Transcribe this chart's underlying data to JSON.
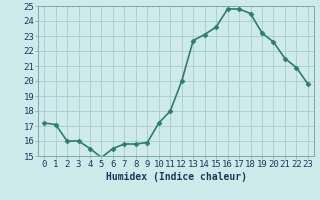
{
  "x": [
    0,
    1,
    2,
    3,
    4,
    5,
    6,
    7,
    8,
    9,
    10,
    11,
    12,
    13,
    14,
    15,
    16,
    17,
    18,
    19,
    20,
    21,
    22,
    23
  ],
  "y": [
    17.2,
    17.1,
    16.0,
    16.0,
    15.5,
    14.9,
    15.5,
    15.8,
    15.8,
    15.9,
    17.2,
    18.0,
    20.0,
    22.7,
    23.1,
    23.6,
    24.8,
    24.8,
    24.5,
    23.2,
    22.6,
    21.5,
    20.9,
    19.8
  ],
  "line_color": "#2e7d6e",
  "marker": "D",
  "marker_size": 2.5,
  "bg_color": "#ceeaea",
  "grid_color": "#a8cccc",
  "xlabel": "Humidex (Indice chaleur)",
  "ylim": [
    15,
    25
  ],
  "xlim_min": -0.5,
  "xlim_max": 23.5,
  "yticks": [
    15,
    16,
    17,
    18,
    19,
    20,
    21,
    22,
    23,
    24,
    25
  ],
  "xticks": [
    0,
    1,
    2,
    3,
    4,
    5,
    6,
    7,
    8,
    9,
    10,
    11,
    12,
    13,
    14,
    15,
    16,
    17,
    18,
    19,
    20,
    21,
    22,
    23
  ],
  "xtick_labels": [
    "0",
    "1",
    "2",
    "3",
    "4",
    "5",
    "6",
    "7",
    "8",
    "9",
    "10",
    "11",
    "12",
    "13",
    "14",
    "15",
    "16",
    "17",
    "18",
    "19",
    "20",
    "21",
    "22",
    "23"
  ],
  "linewidth": 1.2,
  "xlabel_fontsize": 7,
  "tick_fontsize": 6.5
}
